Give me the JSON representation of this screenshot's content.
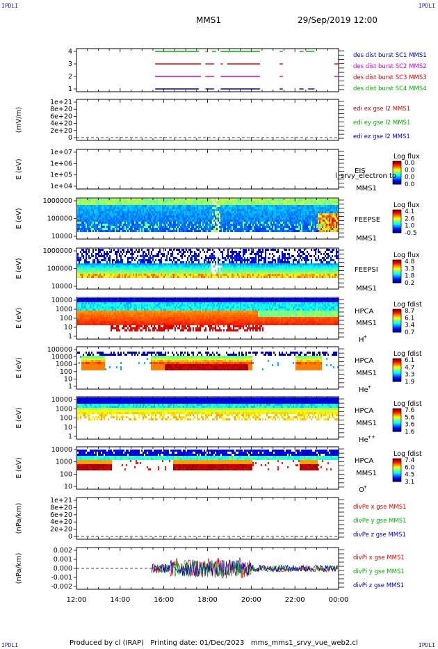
{
  "corners": {
    "top_left": "IPDLI",
    "top_right": "IPDLI",
    "bottom_left": "IPDLI",
    "bottom_right": "IPDLI"
  },
  "header": {
    "spacecraft": "MMS1",
    "datetime": "29/Sep/2019 12:00"
  },
  "footer": {
    "text": "Produced by cl (IRAP)   Printing date: 01/Dec/2023   mms_mms1_srvy_vue_web2.cl"
  },
  "x_axis": {
    "tick_labels": [
      "12:00",
      "14:00",
      "16:00",
      "18:00",
      "20:00",
      "22:00",
      "00:00"
    ]
  },
  "colors": {
    "red": "#e00000",
    "green": "#00b000",
    "blue": "#0000c0",
    "magenta": "#d000d0"
  },
  "chart_data": [
    {
      "type": "line",
      "panel": "burst-availability",
      "ylabel": "",
      "y_tick_labels": [
        "4",
        "3",
        "2",
        "1"
      ],
      "legend": [
        {
          "text": "des dist burst SC1 MMS1",
          "color": "#0000c0"
        },
        {
          "text": "des dist burst SC2 MMS2",
          "color": "#d000d0"
        },
        {
          "text": "des dist burst SC3 MMS3",
          "color": "#e00000"
        },
        {
          "text": "des dist burst SC4 MMS4",
          "color": "#00b000"
        }
      ],
      "series": [
        {
          "y": 4,
          "color": "#00b000",
          "segments": [
            [
              15.6,
              17.6
            ],
            [
              17.9,
              18.0
            ],
            [
              18.2,
              18.4
            ],
            [
              18.6,
              20.4
            ],
            [
              21.3,
              21.45
            ],
            [
              22.2,
              22.4
            ],
            [
              22.5,
              22.9
            ]
          ]
        },
        {
          "y": 3,
          "color": "#e00000",
          "segments": [
            [
              15.6,
              17.7
            ],
            [
              17.9,
              18.3
            ],
            [
              18.6,
              18.7
            ],
            [
              18.9,
              20.4
            ],
            [
              21.3,
              21.45
            ],
            [
              23.8,
              24.0
            ]
          ]
        },
        {
          "y": 2,
          "color": "#d000d0",
          "segments": [
            [
              15.6,
              17.7
            ],
            [
              17.9,
              18.3
            ],
            [
              18.6,
              20.4
            ],
            [
              21.3,
              21.45
            ],
            [
              23.8,
              24.0
            ]
          ]
        },
        {
          "y": 1,
          "color": "#0000c0",
          "segments": [
            [
              15.6,
              17.6
            ],
            [
              17.9,
              18.3
            ],
            [
              18.6,
              20.4
            ],
            [
              21.3,
              21.45
            ],
            [
              22.2,
              22.4
            ],
            [
              22.6,
              22.9
            ]
          ]
        }
      ]
    },
    {
      "type": "line",
      "panel": "edi-efield",
      "ylabel": "(mV/m)",
      "y_tick_labels": [
        "1e+21",
        "8e+20",
        "6e+20",
        "4e+20",
        "2e+20",
        "0"
      ],
      "legend": [
        {
          "text": "edi ex gse l2 MMS1",
          "color": "#e00000"
        },
        {
          "text": "edi ey gse l2 MMS1",
          "color": "#00b000"
        },
        {
          "text": "edi ez gse l2 MMS1",
          "color": "#0000c0"
        }
      ]
    },
    {
      "type": "heatmap",
      "panel": "eis",
      "ylabel": "E (eV)",
      "y_tick_labels": [
        "1e+07",
        "1e+06",
        "1e+05",
        "1e+04"
      ],
      "labels": [
        "EIS",
        "MMS1"
      ],
      "overlay_label": "l_srvy_electron to",
      "colorbar": {
        "title": "Log flux",
        "ticks": [
          "0.0",
          "0.0",
          "0.0",
          "0.0"
        ]
      }
    },
    {
      "type": "heatmap",
      "panel": "feeps-electron",
      "ylabel": "E (eV)",
      "y_tick_labels": [
        "1000000",
        "100000",
        "10000"
      ],
      "labels": [
        "FEEPSE",
        "MMS1"
      ],
      "colorbar": {
        "title": "Log flux",
        "ticks": [
          "4.1",
          "2.6",
          "1.0",
          "-0.5"
        ]
      }
    },
    {
      "type": "heatmap",
      "panel": "feeps-ion",
      "ylabel": "E (eV)",
      "y_tick_labels": [
        "1000000",
        "100000",
        "10000"
      ],
      "labels": [
        "FEEPSI",
        "MMS1"
      ],
      "colorbar": {
        "title": "Log flux",
        "ticks": [
          "4.8",
          "3.3",
          "1.8",
          "0.2"
        ]
      }
    },
    {
      "type": "heatmap",
      "panel": "hpca-h",
      "ylabel": "E (eV)",
      "y_tick_labels": [
        "10000",
        "1000",
        "100",
        "10",
        "1"
      ],
      "labels": [
        "HPCA",
        "MMS1"
      ],
      "species": "H",
      "species_charge": "+",
      "colorbar": {
        "title": "Log fdist",
        "ticks": [
          "8.7",
          "6.1",
          "3.4",
          "0.7"
        ]
      }
    },
    {
      "type": "heatmap",
      "panel": "hpca-he",
      "ylabel": "E (eV)",
      "y_tick_labels": [
        "100000",
        "10000",
        "1000",
        "100",
        "10",
        "1"
      ],
      "labels": [
        "HPCA",
        "MMS1"
      ],
      "species": "He",
      "species_charge": "+",
      "colorbar": {
        "title": "Log fdist",
        "ticks": [
          "6.1",
          "4.7",
          "3.3",
          "1.9"
        ]
      }
    },
    {
      "type": "heatmap",
      "panel": "hpca-he2",
      "ylabel": "E (eV)",
      "y_tick_labels": [
        "10000",
        "1000",
        "100",
        "10",
        "1"
      ],
      "labels": [
        "HPCA",
        "MMS1"
      ],
      "species": "He",
      "species_charge": "++",
      "colorbar": {
        "title": "Log fdist",
        "ticks": [
          "7.6",
          "5.6",
          "3.6",
          "1.6"
        ]
      }
    },
    {
      "type": "heatmap",
      "panel": "hpca-o",
      "ylabel": "E (eV)",
      "y_tick_labels": [
        "10000",
        "1000",
        "100",
        "10"
      ],
      "labels": [
        "HPCA",
        "MMS1"
      ],
      "species": "O",
      "species_charge": "+",
      "colorbar": {
        "title": "Log fdist",
        "ticks": [
          "7.4",
          "6.0",
          "4.5",
          "3.1"
        ]
      }
    },
    {
      "type": "line",
      "panel": "divpe",
      "ylabel": "(nPa/km)",
      "y_tick_labels": [
        "1e+21",
        "8e+20",
        "6e+20",
        "4e+20",
        "2e+20",
        "0"
      ],
      "legend": [
        {
          "text": "divPe x gse MMS1",
          "color": "#e00000"
        },
        {
          "text": "divPe y gse MMS1",
          "color": "#00b000"
        },
        {
          "text": "divPe z gse MMS1",
          "color": "#0000c0"
        }
      ]
    },
    {
      "type": "line",
      "panel": "divpi",
      "ylabel": "(nPa/km)",
      "y_tick_labels": [
        "0.002",
        "0.001",
        "0.000",
        "-0.001",
        "-0.002"
      ],
      "ylim": [
        -0.0025,
        0.0025
      ],
      "legend": [
        {
          "text": "divPi x gse MMS1",
          "color": "#e00000"
        },
        {
          "text": "divPi y gse MMS1",
          "color": "#00b000"
        },
        {
          "text": "divPi z gse MMS1",
          "color": "#0000c0"
        }
      ]
    }
  ]
}
